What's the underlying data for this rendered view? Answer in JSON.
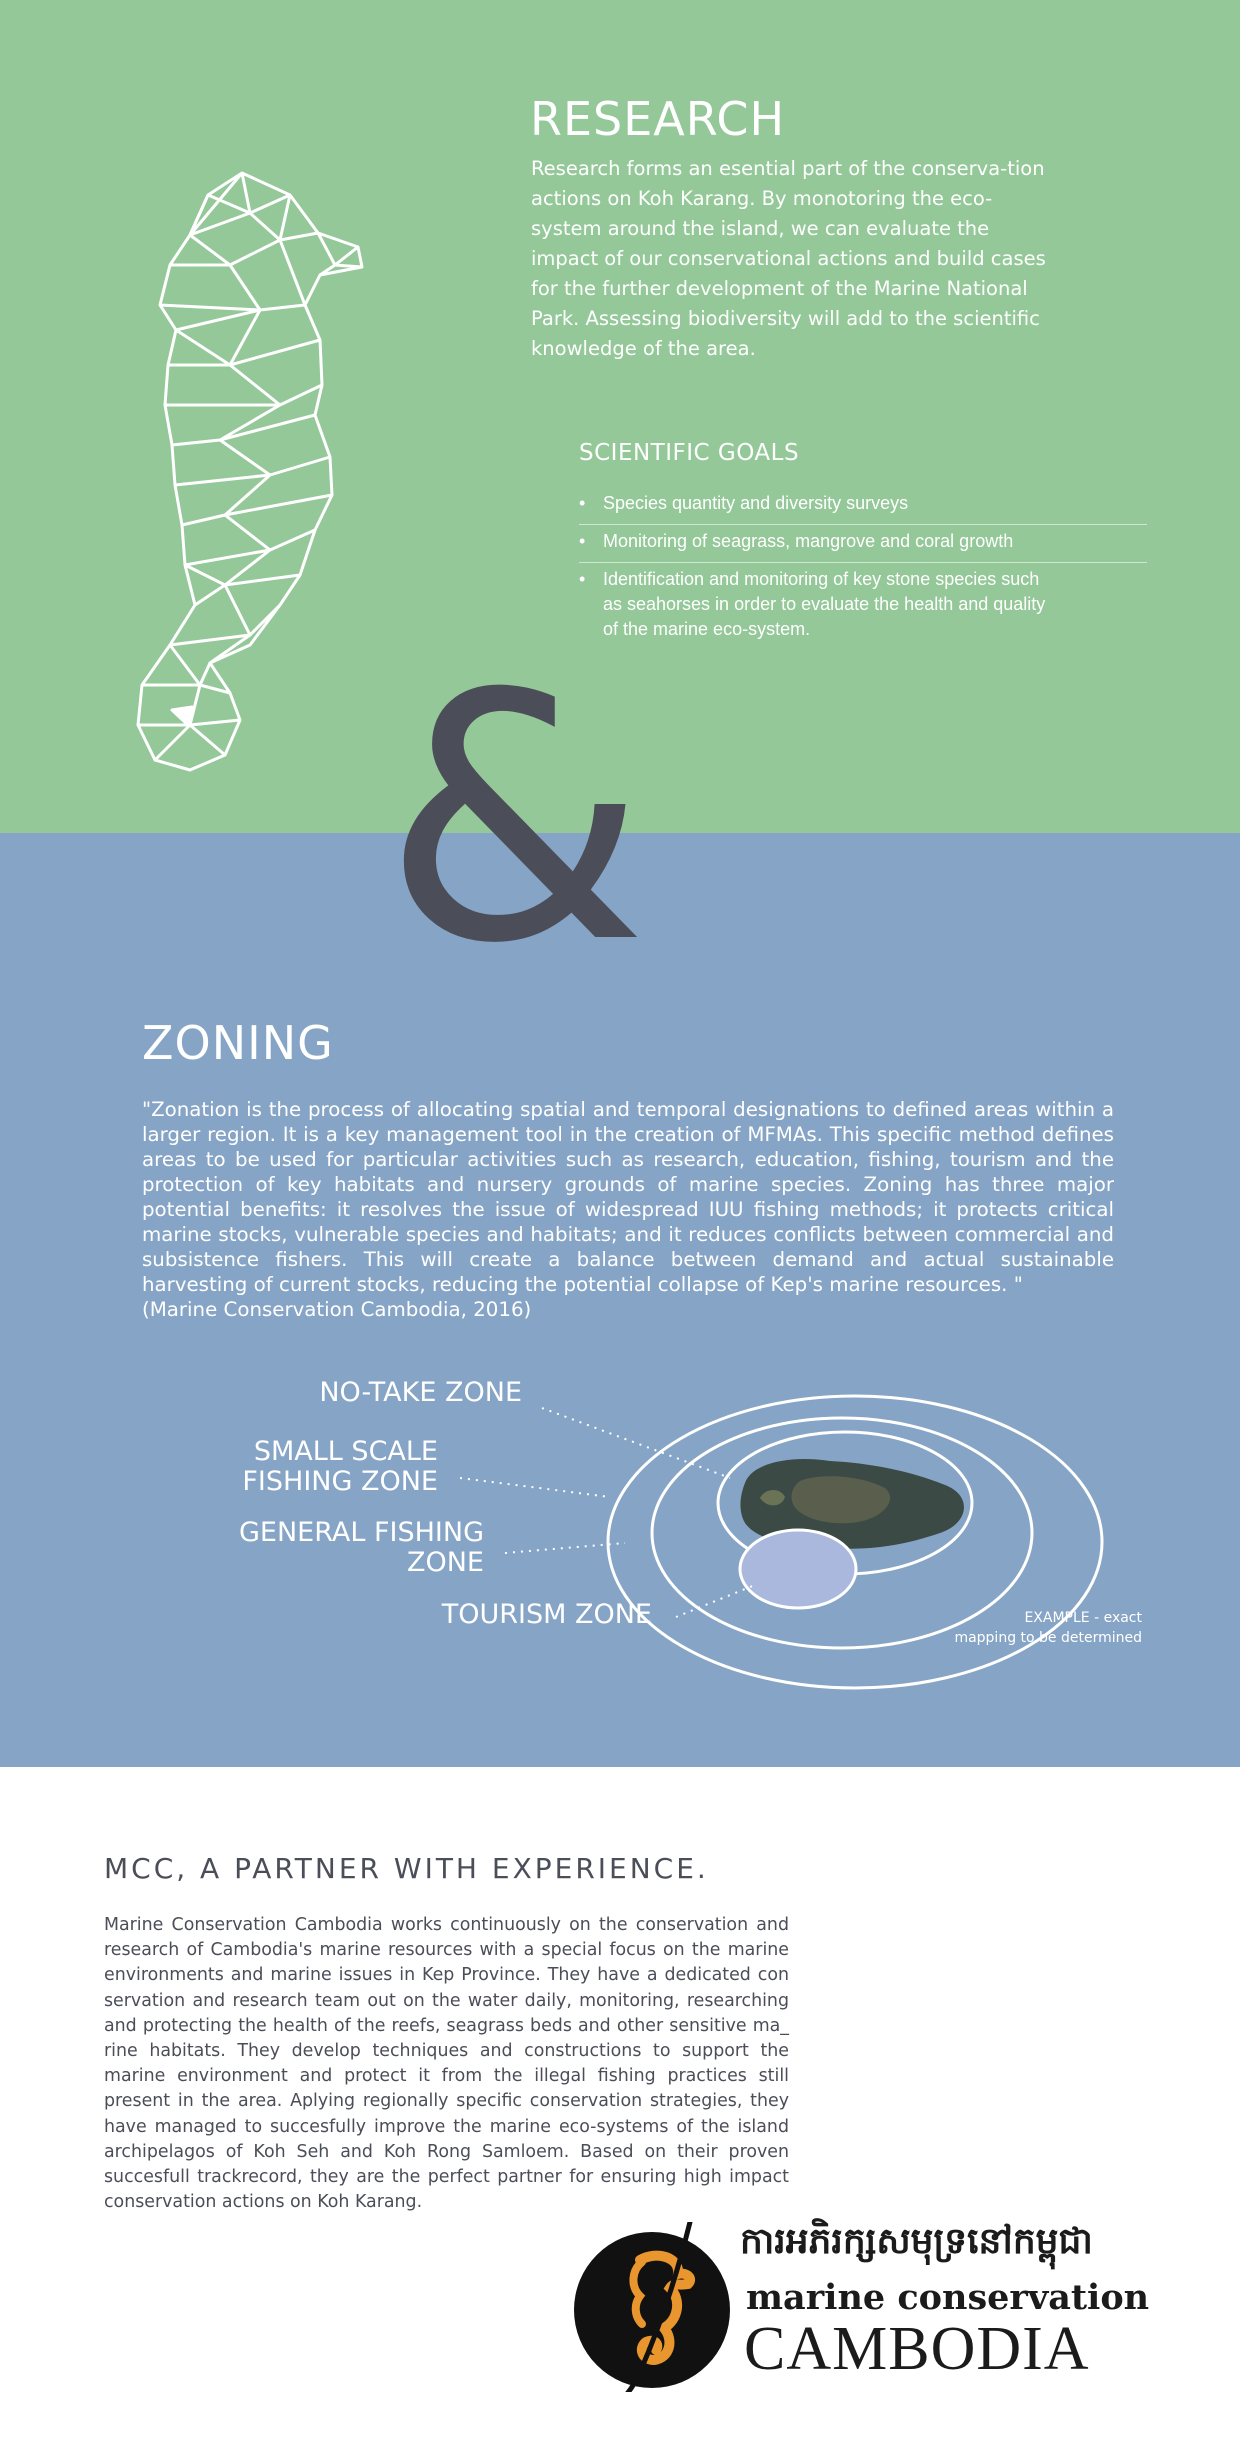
{
  "research": {
    "title": "RESEARCH",
    "text": "Research forms an esential part of the conserva-tion actions on Koh Karang. By monotoring the eco-system around the island, we can evaluate the impact of our conservational actions and build cases for the further development of the Marine National Park. Assessing biodiversity will add to the scientific knowledge of the area.",
    "goals_title": "SCIENTIFIC GOALS",
    "goals": [
      "Species quantity and diversity surveys",
      "Monitoring of seagrass, mangrove and coral growth",
      "Identification and monitoring of key stone species such as seahorses in order to evaluate the health and quality of the marine eco-system."
    ],
    "illustration_icon": "seahorse-icon"
  },
  "ampersand": "&",
  "zoning": {
    "title": "ZONING",
    "quote": "\"Zonation is the process of allocating spatial and temporal designations to defined areas within a larger region. It is a key management tool in the creation of MFMAs. This specific method defines areas to be used for particular activities such as research, education, fishing, tourism and the protection of key habitats and nursery grounds of marine species. Zoning has three major potential benefits: it resolves the issue of widespread IUU fishing methods; it protects critical marine stocks, vulnerable species and habitats; and it reduces conflicts between commercial and subsistence fishers. This will create a balance between demand and actual sustainable harvesting of current stocks, reducing the potential collapse of Kep's marine resources. \"",
    "citation": "(Marine Conservation Cambodia, 2016)",
    "zones": {
      "no_take": "NO-TAKE ZONE",
      "small_scale": "SMALL SCALE FISHING ZONE",
      "general": "GENERAL FISHING ZONE",
      "tourism": "TOURISM ZONE"
    },
    "note_line1": "EXAMPLE - exact",
    "note_line2": "mapping to be determined",
    "colors": {
      "ring": "#ffffff",
      "tourism_fill": "#a9b8dc",
      "island": "#3b4a45"
    }
  },
  "mcc": {
    "title": "MCC, A PARTNER WITH EXPERIENCE.",
    "text": "Marine Conservation Cambodia works continuously on the conservation and research of Cambodia's marine resources with a special focus on the marine environments and marine issues in Kep Province. They have a dedicated con servation and research team out on the water daily, monitoring, researching and protecting the health of the reefs, seagrass beds and other sensitive ma_ rine habitats. They develop techniques and constructions to support the marine environment and protect it from the illegal fishing practices still present in the area. Aplying regionally specific conservation strategies, they have managed to succesfully improve the marine eco-systems of the island archipelagos of Koh Seh and Koh Rong Samloem. Based on their proven succesfull trackrecord, they are the perfect partner for ensuring high impact conservation actions on Koh Karang.",
    "logo": {
      "khmer": "ការអភិរក្សសមុទ្រនៅកម្ពុជា",
      "line1": "marine conservation",
      "line2": "CAMBODIA",
      "icon": "seahorse-logo-icon"
    }
  },
  "colors": {
    "research_bg": "#94c899",
    "zoning_bg": "#86a4c5",
    "dark_text": "#4b4e58",
    "logo_orange": "#e8962d"
  }
}
